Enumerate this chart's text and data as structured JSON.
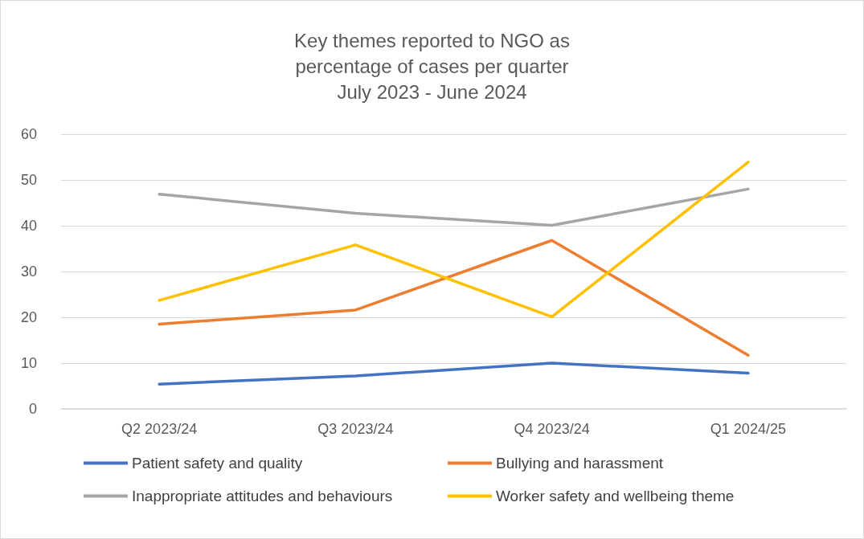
{
  "chart_data": {
    "type": "line",
    "title": "Key themes reported to NGO as\npercentage of cases per quarter\nJuly 2023 - June 2024",
    "categories": [
      "Q2 2023/24",
      "Q3 2023/24",
      "Q4 2023/24",
      "Q1 2024/25"
    ],
    "series": [
      {
        "name": "Patient safety and quality",
        "color": "#4472c4",
        "values": [
          5.4,
          7.2,
          10,
          7.8
        ]
      },
      {
        "name": "Bullying and harassment",
        "color": "#ed7d31",
        "values": [
          18.5,
          21.6,
          36.8,
          11.7
        ]
      },
      {
        "name": "Inappropriate attitudes and behaviours",
        "color": "#a5a5a5",
        "values": [
          46.9,
          42.7,
          40.1,
          48
        ]
      },
      {
        "name": "Worker safety and wellbeing theme",
        "color": "#ffc000",
        "values": [
          23.7,
          35.8,
          20.1,
          53.9
        ]
      }
    ],
    "ylim": [
      0,
      60
    ],
    "yticks": [
      0,
      10,
      20,
      30,
      40,
      50,
      60
    ],
    "grid": "y",
    "legend": "bottom",
    "marker": "none",
    "line_style": "solid"
  }
}
